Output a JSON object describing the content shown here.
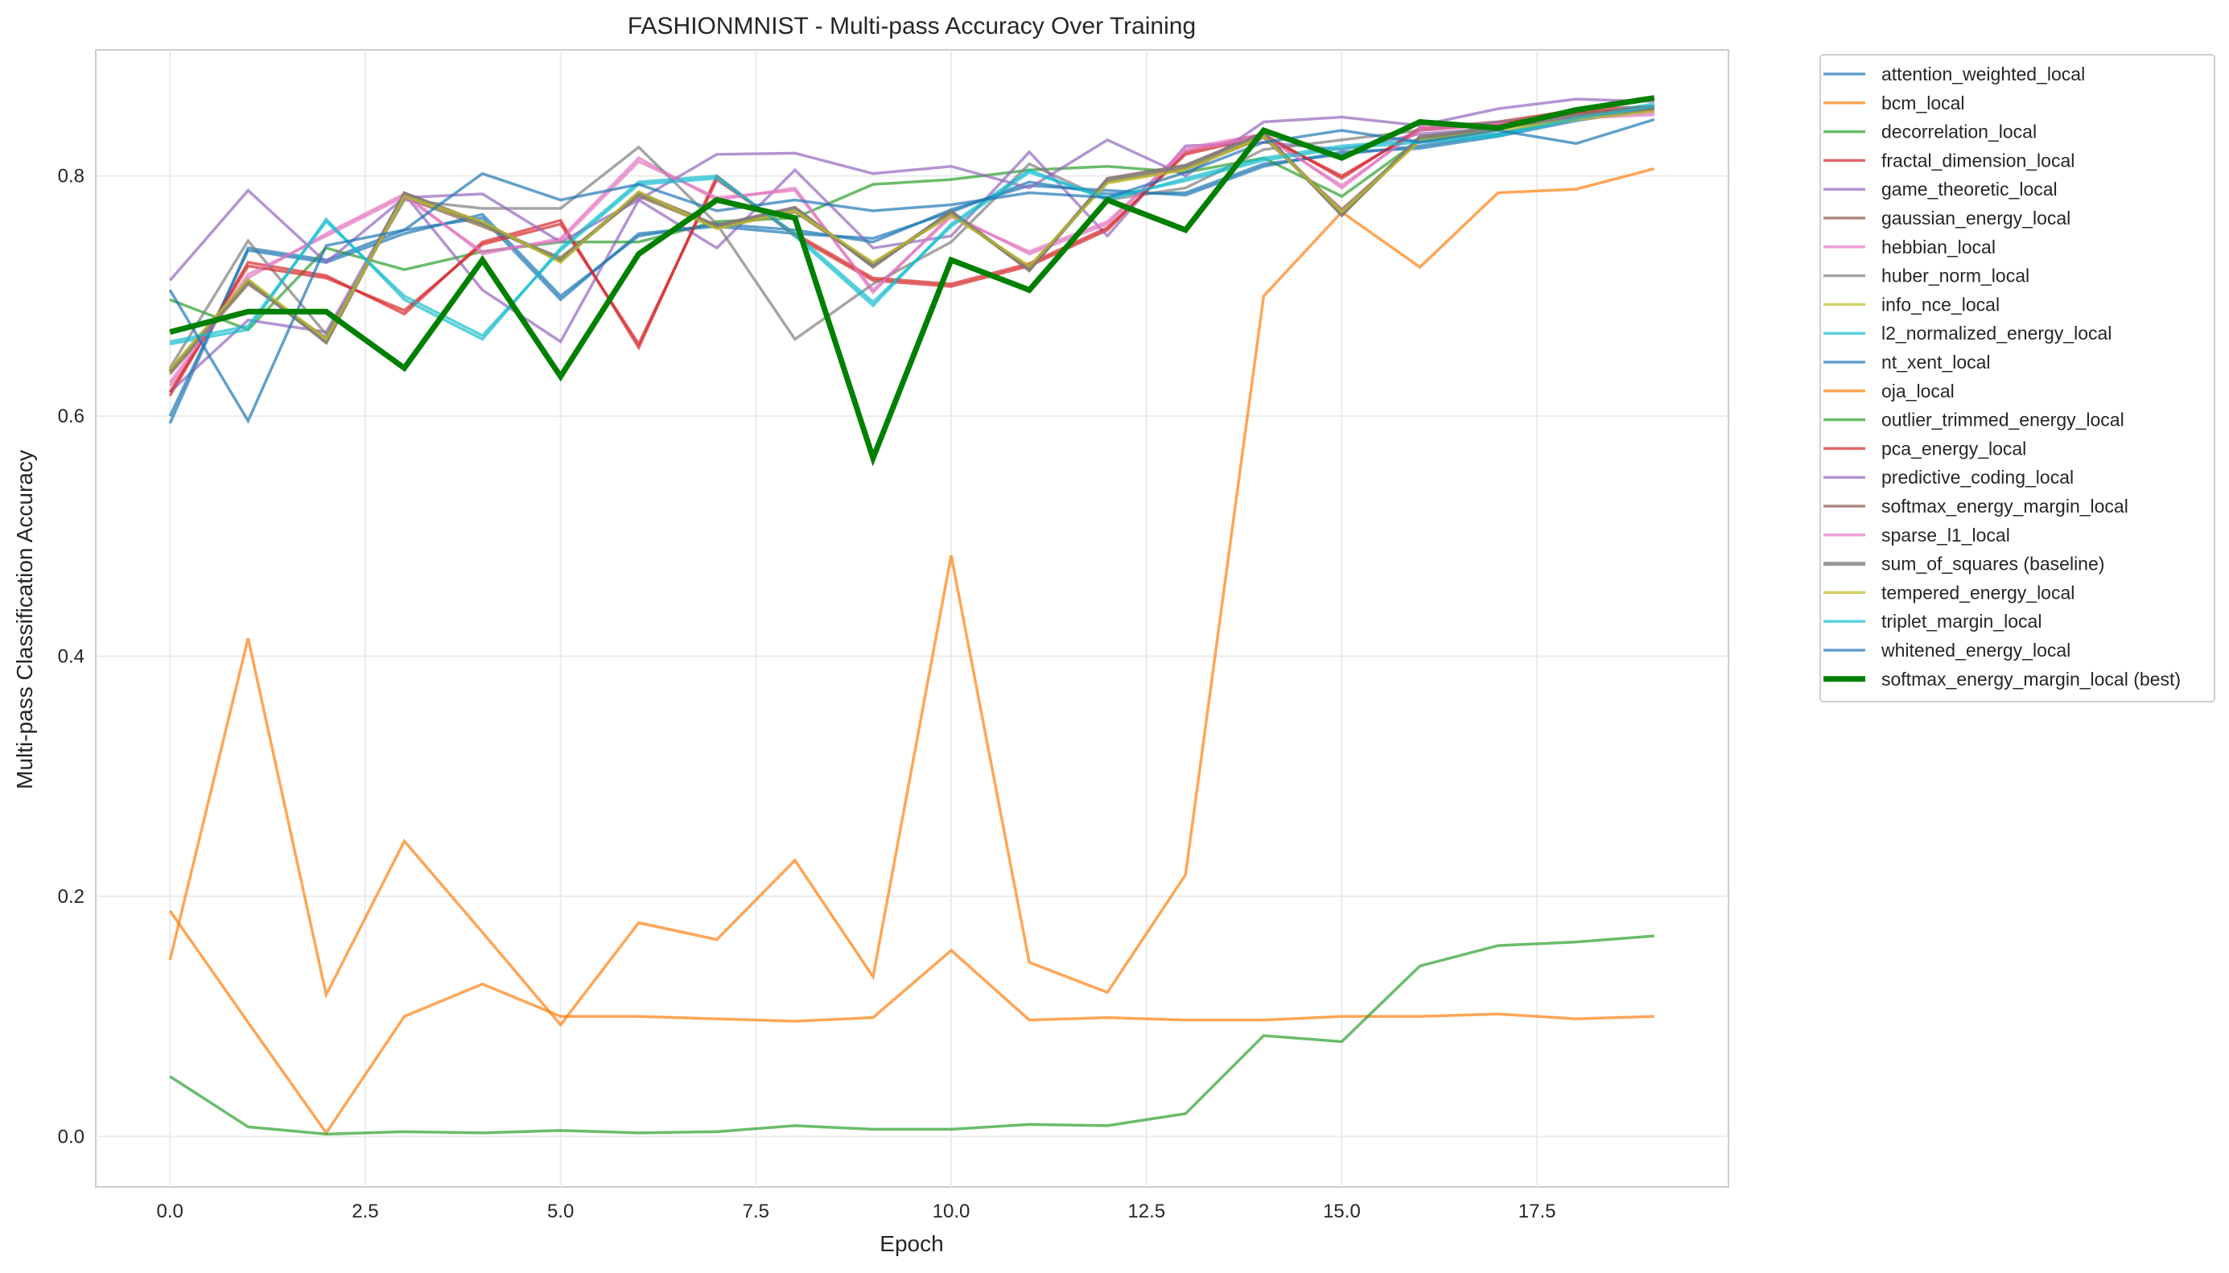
{
  "chart_data": {
    "type": "line",
    "title": "FASHIONMNIST - Multi-pass Accuracy Over Training",
    "xlabel": "Epoch",
    "ylabel": "Multi-pass Classification Accuracy",
    "xlim": [
      -0.95,
      19.95
    ],
    "ylim": [
      -0.042,
      0.905
    ],
    "xticks": [
      "0.0",
      "2.5",
      "5.0",
      "7.5",
      "10.0",
      "12.5",
      "15.0",
      "17.5"
    ],
    "xtick_values": [
      0,
      2.5,
      5,
      7.5,
      10,
      12.5,
      15,
      17.5
    ],
    "yticks": [
      "0.0",
      "0.2",
      "0.4",
      "0.6",
      "0.8"
    ],
    "ytick_values": [
      0,
      0.2,
      0.4,
      0.6,
      0.8
    ],
    "grid": true,
    "legend_placement": "outside-right",
    "x": [
      0,
      1,
      2,
      3,
      4,
      5,
      6,
      7,
      8,
      9,
      10,
      11,
      12,
      13,
      14,
      15,
      16,
      17,
      18,
      19
    ],
    "series": [
      {
        "name": "attention_weighted_local",
        "color": "#1f77b4",
        "values": [
          0.594,
          0.74,
          0.73,
          0.755,
          0.765,
          0.697,
          0.752,
          0.758,
          0.752,
          0.748,
          0.77,
          0.795,
          0.785,
          0.786,
          0.81,
          0.818,
          0.825,
          0.835,
          0.848,
          0.858
        ]
      },
      {
        "name": "bcm_local",
        "color": "#ff7f0e",
        "values": [
          0.147,
          0.415,
          0.118,
          0.246,
          0.17,
          0.093,
          0.178,
          0.164,
          0.23,
          0.133,
          0.484,
          0.145,
          0.12,
          0.218,
          0.7,
          0.77,
          0.724,
          0.786,
          0.789,
          0.806
        ]
      },
      {
        "name": "decorrelation_local",
        "color": "#2ca02c",
        "values": [
          0.697,
          0.672,
          0.74,
          0.722,
          0.737,
          0.745,
          0.745,
          0.762,
          0.765,
          0.793,
          0.797,
          0.805,
          0.808,
          0.803,
          0.815,
          0.783,
          0.83,
          0.84,
          0.848,
          0.857
        ]
      },
      {
        "name": "fractal_dimension_local",
        "color": "#d62728",
        "values": [
          0.617,
          0.728,
          0.717,
          0.685,
          0.745,
          0.763,
          0.657,
          0.8,
          0.75,
          0.713,
          0.708,
          0.725,
          0.755,
          0.82,
          0.835,
          0.798,
          0.84,
          0.845,
          0.855,
          0.858
        ]
      },
      {
        "name": "game_theoretic_local",
        "color": "#9467bd",
        "values": [
          0.62,
          0.68,
          0.67,
          0.785,
          0.705,
          0.662,
          0.78,
          0.74,
          0.805,
          0.74,
          0.75,
          0.82,
          0.75,
          0.825,
          0.828,
          0.822,
          0.835,
          0.84,
          0.85,
          0.855
        ]
      },
      {
        "name": "gaussian_energy_local",
        "color": "#8c564b",
        "values": [
          0.635,
          0.71,
          0.665,
          0.782,
          0.758,
          0.732,
          0.783,
          0.757,
          0.77,
          0.727,
          0.768,
          0.724,
          0.795,
          0.806,
          0.832,
          0.772,
          0.83,
          0.842,
          0.848,
          0.855
        ]
      },
      {
        "name": "hebbian_local",
        "color": "#e377c2",
        "values": [
          0.625,
          0.715,
          0.752,
          0.785,
          0.735,
          0.748,
          0.815,
          0.78,
          0.79,
          0.703,
          0.768,
          0.735,
          0.76,
          0.823,
          0.835,
          0.79,
          0.84,
          0.845,
          0.85,
          0.853
        ]
      },
      {
        "name": "huber_norm_local",
        "color": "#7f7f7f",
        "values": [
          0.64,
          0.746,
          0.668,
          0.78,
          0.773,
          0.773,
          0.824,
          0.76,
          0.664,
          0.71,
          0.745,
          0.81,
          0.78,
          0.79,
          0.822,
          0.83,
          0.838,
          0.845,
          0.852,
          0.856
        ]
      },
      {
        "name": "info_nce_local",
        "color": "#bcbd22",
        "values": [
          0.636,
          0.711,
          0.663,
          0.784,
          0.759,
          0.731,
          0.784,
          0.757,
          0.772,
          0.726,
          0.769,
          0.723,
          0.796,
          0.807,
          0.834,
          0.769,
          0.831,
          0.841,
          0.849,
          0.856
        ]
      },
      {
        "name": "l2_normalized_energy_local",
        "color": "#17becf",
        "values": [
          0.66,
          0.672,
          0.764,
          0.697,
          0.664,
          0.74,
          0.795,
          0.8,
          0.75,
          0.692,
          0.76,
          0.805,
          0.78,
          0.798,
          0.815,
          0.825,
          0.83,
          0.835,
          0.85,
          0.86
        ]
      },
      {
        "name": "nt_xent_local",
        "color": "#1f77b4",
        "values": [
          0.6,
          0.738,
          0.728,
          0.752,
          0.768,
          0.7,
          0.75,
          0.76,
          0.755,
          0.745,
          0.772,
          0.792,
          0.788,
          0.784,
          0.808,
          0.82,
          0.823,
          0.833,
          0.846,
          0.856
        ]
      },
      {
        "name": "oja_local",
        "color": "#ff7f0e",
        "values": [
          0.188,
          0.095,
          0.003,
          0.1,
          0.127,
          0.1,
          0.1,
          0.098,
          0.096,
          0.099,
          0.155,
          0.097,
          0.099,
          0.097,
          0.097,
          0.1,
          0.1,
          0.102,
          0.098,
          0.1
        ]
      },
      {
        "name": "outlier_trimmed_energy_local",
        "color": "#2ca02c",
        "values": [
          0.05,
          0.008,
          0.002,
          0.004,
          0.003,
          0.005,
          0.003,
          0.004,
          0.009,
          0.006,
          0.006,
          0.01,
          0.009,
          0.019,
          0.084,
          0.079,
          0.142,
          0.159,
          0.162,
          0.167
        ]
      },
      {
        "name": "pca_energy_local",
        "color": "#d62728",
        "values": [
          0.62,
          0.725,
          0.715,
          0.688,
          0.743,
          0.76,
          0.66,
          0.797,
          0.752,
          0.715,
          0.71,
          0.727,
          0.757,
          0.818,
          0.833,
          0.8,
          0.838,
          0.843,
          0.853,
          0.856
        ]
      },
      {
        "name": "predictive_coding_local",
        "color": "#9467bd",
        "values": [
          0.713,
          0.788,
          0.728,
          0.782,
          0.785,
          0.745,
          0.78,
          0.818,
          0.819,
          0.802,
          0.808,
          0.79,
          0.83,
          0.8,
          0.845,
          0.849,
          0.842,
          0.856,
          0.864,
          0.862
        ]
      },
      {
        "name": "softmax_energy_margin_local",
        "color": "#8c564b",
        "values": [
          0.638,
          0.713,
          0.661,
          0.786,
          0.761,
          0.729,
          0.786,
          0.759,
          0.774,
          0.724,
          0.771,
          0.721,
          0.798,
          0.809,
          0.836,
          0.767,
          0.833,
          0.839,
          0.851,
          0.858
        ]
      },
      {
        "name": "sparse_l1_local",
        "color": "#e377c2",
        "values": [
          0.628,
          0.718,
          0.75,
          0.783,
          0.737,
          0.746,
          0.812,
          0.782,
          0.788,
          0.705,
          0.766,
          0.737,
          0.762,
          0.821,
          0.833,
          0.792,
          0.838,
          0.843,
          0.848,
          0.851
        ]
      },
      {
        "name": "sum_of_squares (baseline)",
        "color": "#7f7f7f",
        "baseline": true,
        "values": [
          0.637,
          0.712,
          0.662,
          0.785,
          0.76,
          0.73,
          0.785,
          0.758,
          0.773,
          0.725,
          0.77,
          0.722,
          0.797,
          0.808,
          0.835,
          0.768,
          0.832,
          0.84,
          0.85,
          0.857
        ]
      },
      {
        "name": "tempered_energy_local",
        "color": "#bcbd22",
        "values": [
          0.639,
          0.714,
          0.664,
          0.783,
          0.762,
          0.728,
          0.787,
          0.756,
          0.771,
          0.728,
          0.767,
          0.725,
          0.794,
          0.805,
          0.833,
          0.77,
          0.829,
          0.838,
          0.847,
          0.854
        ]
      },
      {
        "name": "triplet_margin_local",
        "color": "#17becf",
        "values": [
          0.662,
          0.675,
          0.762,
          0.7,
          0.667,
          0.738,
          0.793,
          0.798,
          0.752,
          0.695,
          0.758,
          0.803,
          0.782,
          0.796,
          0.813,
          0.823,
          0.828,
          0.833,
          0.848,
          0.858
        ]
      },
      {
        "name": "whitened_energy_local",
        "color": "#1f77b4",
        "values": [
          0.705,
          0.596,
          0.742,
          0.755,
          0.802,
          0.78,
          0.793,
          0.771,
          0.78,
          0.771,
          0.776,
          0.786,
          0.782,
          0.803,
          0.828,
          0.838,
          0.828,
          0.838,
          0.827,
          0.847
        ]
      },
      {
        "name": "softmax_energy_margin_local (best)",
        "color": "#008000",
        "best": true,
        "values": [
          0.67,
          0.687,
          0.687,
          0.64,
          0.73,
          0.633,
          0.735,
          0.78,
          0.765,
          0.565,
          0.73,
          0.705,
          0.78,
          0.755,
          0.838,
          0.815,
          0.845,
          0.84,
          0.855,
          0.865
        ]
      }
    ]
  }
}
